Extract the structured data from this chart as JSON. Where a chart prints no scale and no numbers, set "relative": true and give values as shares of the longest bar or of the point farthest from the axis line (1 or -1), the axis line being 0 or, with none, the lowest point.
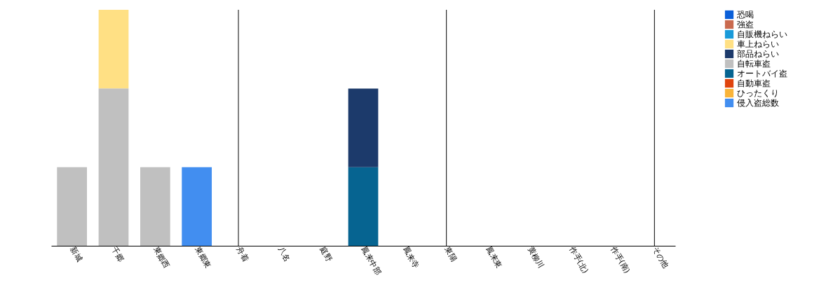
{
  "chart_data": {
    "type": "bar",
    "relative": true,
    "stacked": true,
    "legend": "top right",
    "grid": false,
    "categories": [
      "新城",
      "千郷",
      "東郷西",
      "東郷東",
      "舟着",
      "八名",
      "庭野",
      "鳳来中部",
      "鳳来寺",
      "東陽",
      "鳳来東",
      "黄柳川",
      "作手(北)",
      "作手(南)",
      "その他"
    ],
    "series": [
      {
        "name": "侵入盗総数",
        "color": "#428ef0",
        "values": [
          0,
          0,
          0,
          0.333,
          0,
          0,
          0,
          0,
          0,
          0,
          0,
          0,
          0,
          0,
          0
        ]
      },
      {
        "name": "ひったくり",
        "color": "#f9b43a",
        "values": [
          0,
          0,
          0,
          0,
          0,
          0,
          0,
          0,
          0,
          0,
          0,
          0,
          0,
          0,
          0
        ]
      },
      {
        "name": "自動車盗",
        "color": "#e0440e",
        "values": [
          0,
          0,
          0,
          0,
          0,
          0,
          0,
          0,
          0,
          0,
          0,
          0,
          0,
          0,
          0
        ]
      },
      {
        "name": "オートバイ盗",
        "color": "#066491",
        "values": [
          0,
          0,
          0,
          0,
          0,
          0,
          0,
          0.333,
          0,
          0,
          0,
          0,
          0,
          0,
          0
        ]
      },
      {
        "name": "自転車盗",
        "color": "#c0c0c0",
        "values": [
          0.333,
          0.667,
          0.333,
          0,
          0,
          0,
          0,
          0,
          0,
          0,
          0,
          0,
          0,
          0,
          0
        ]
      },
      {
        "name": "部品ねらい",
        "color": "#1c3a6b",
        "values": [
          0,
          0,
          0,
          0,
          0,
          0,
          0,
          0.333,
          0,
          0,
          0,
          0,
          0,
          0,
          0
        ]
      },
      {
        "name": "車上ねらい",
        "color": "#ffe084",
        "values": [
          0,
          0.333,
          0,
          0,
          0,
          0,
          0,
          0,
          0,
          0,
          0,
          0,
          0,
          0,
          0
        ]
      },
      {
        "name": "自販機ねらい",
        "color": "#1a9ad9",
        "values": [
          0,
          0,
          0,
          0,
          0,
          0,
          0,
          0,
          0,
          0,
          0,
          0,
          0,
          0,
          0
        ]
      },
      {
        "name": "強盗",
        "color": "#c96a4f",
        "values": [
          0,
          0,
          0,
          0,
          0,
          0,
          0,
          0,
          0,
          0,
          0,
          0,
          0,
          0,
          0
        ]
      },
      {
        "name": "恐喝",
        "color": "#0a5fd8",
        "values": [
          0,
          0,
          0,
          0,
          0,
          0,
          0,
          0,
          0,
          0,
          0,
          0,
          0,
          0,
          0
        ]
      }
    ],
    "ref_lines": [
      {
        "axis": "x",
        "value": "舟着",
        "color": "#000000"
      },
      {
        "axis": "x",
        "value": "東陽",
        "color": "#000000"
      },
      {
        "axis": "x",
        "value": "その他",
        "color": "#000000"
      }
    ]
  }
}
